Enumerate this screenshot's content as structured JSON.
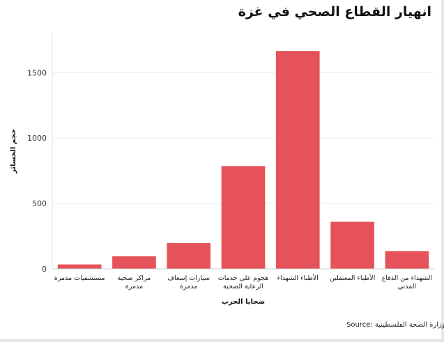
{
  "chart_data": {
    "type": "bar",
    "title": "انهيار القطاع الصحي في غزة",
    "xlabel": "ضحايا الحرب",
    "ylabel": "حجم الخسائر",
    "source": "Source: وزارة الصحة الفلسطينية",
    "categories": [
      [
        "مستشفيات مدمرة"
      ],
      [
        "مراكز صحية",
        "مدمرة"
      ],
      [
        "سيارات إسعاف",
        "مدمرة"
      ],
      [
        "هجوم على خدمات",
        "الرعاية الصحية"
      ],
      [
        "الأطباء الشهداء"
      ],
      [
        "الأطباء المعتقلين"
      ],
      [
        "الشهداء من الدفاع",
        "المدني"
      ]
    ],
    "values": [
      34,
      96,
      197,
      786,
      1666,
      360,
      136
    ],
    "ylim": [
      0,
      1800
    ],
    "yticks": [
      0,
      500,
      1000,
      1500
    ],
    "bar_color": "#e5525a",
    "grid": true
  }
}
